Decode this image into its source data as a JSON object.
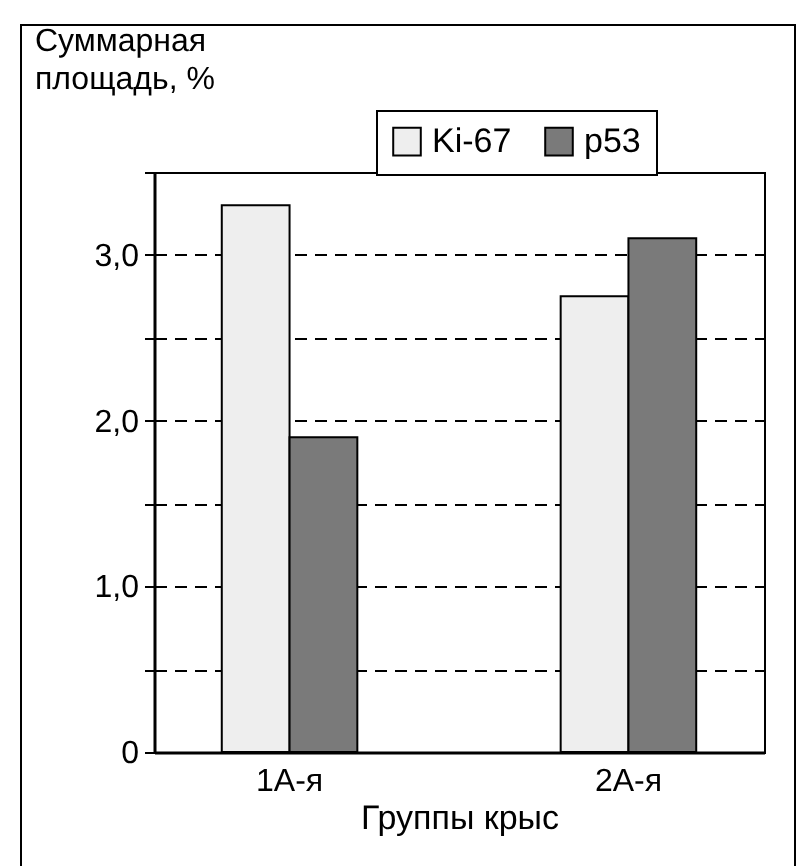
{
  "chart_data": {
    "type": "bar",
    "ylabel": "Суммарная площадь, %",
    "xlabel": "Группы крыс",
    "categories": [
      "1А-я",
      "2А-я"
    ],
    "series": [
      {
        "name": "Ki-67",
        "color": "#eeeeee",
        "values": [
          3.3,
          2.75
        ]
      },
      {
        "name": "p53",
        "color": "#7a7a7a",
        "values": [
          1.9,
          3.1
        ]
      }
    ],
    "ylim": [
      0,
      3.5
    ],
    "yticks": [
      0,
      {
        "value": 0.5,
        "label": null
      },
      {
        "value": 1,
        "label": "1,0"
      },
      {
        "value": 1.5,
        "label": null
      },
      {
        "value": 2,
        "label": "2,0"
      },
      {
        "value": 2.5,
        "label": null
      },
      {
        "value": 3,
        "label": "3,0"
      },
      {
        "value": 3.5,
        "label": null
      }
    ],
    "grid": "y",
    "legend": "top right"
  }
}
